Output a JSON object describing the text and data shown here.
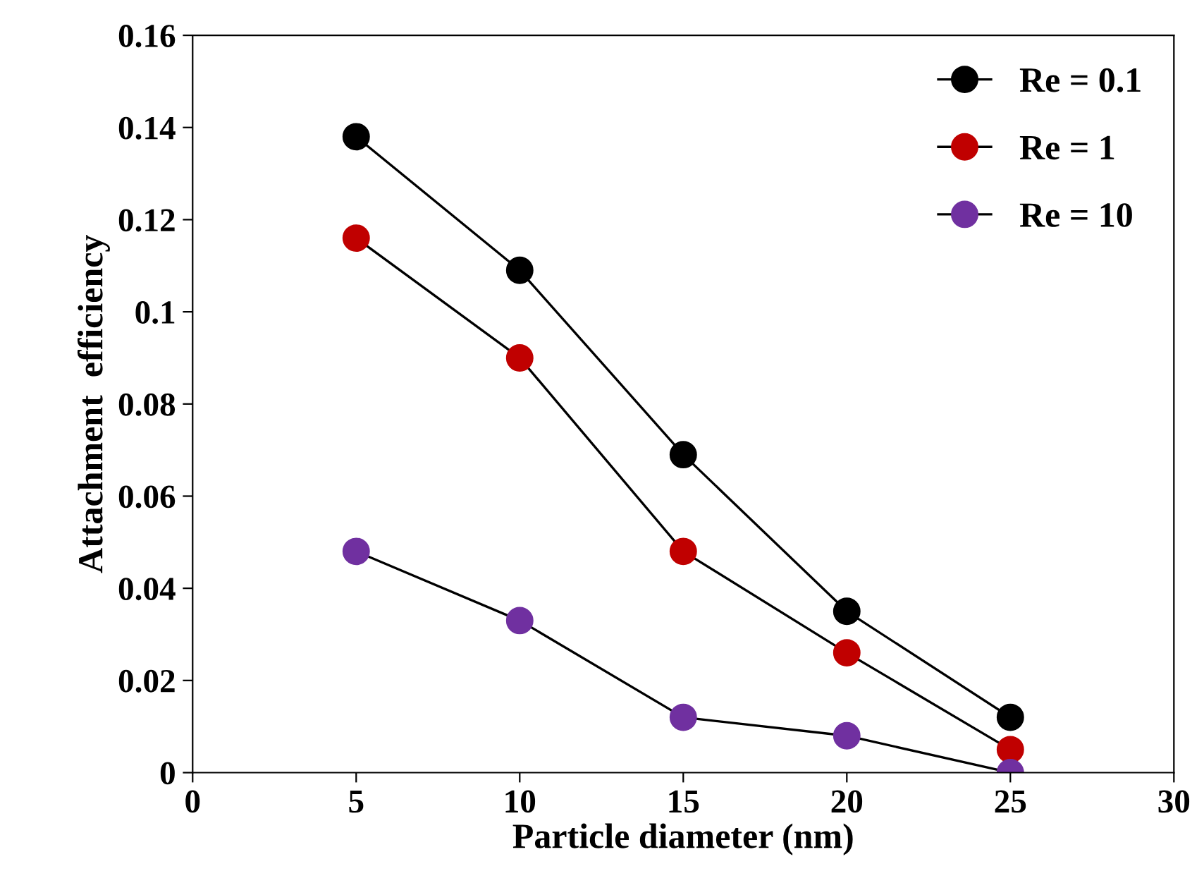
{
  "chart_data": {
    "type": "line",
    "xlabel": "Particle diameter (nm)",
    "ylabel": "Attachment  efficiency",
    "x": [
      5,
      10,
      15,
      20,
      25
    ],
    "series": [
      {
        "name": "Re = 0.1",
        "color": "#000000",
        "values": [
          0.138,
          0.109,
          0.069,
          0.035,
          0.012
        ]
      },
      {
        "name": "Re = 1",
        "color": "#c00000",
        "values": [
          0.116,
          0.09,
          0.048,
          0.026,
          0.005
        ]
      },
      {
        "name": "Re = 10",
        "color": "#7030a0",
        "values": [
          0.048,
          0.033,
          0.012,
          0.008,
          0
        ]
      }
    ],
    "xlim": [
      0,
      30
    ],
    "xticks": [
      0,
      5,
      10,
      15,
      20,
      25,
      30
    ],
    "ylim": [
      0,
      0.16
    ],
    "yticks": [
      0,
      0.02,
      0.04,
      0.06,
      0.08,
      0.1,
      0.12,
      0.14,
      0.16
    ],
    "marker": "circle",
    "line_style": "solid",
    "legend": "top right",
    "grid": false
  }
}
